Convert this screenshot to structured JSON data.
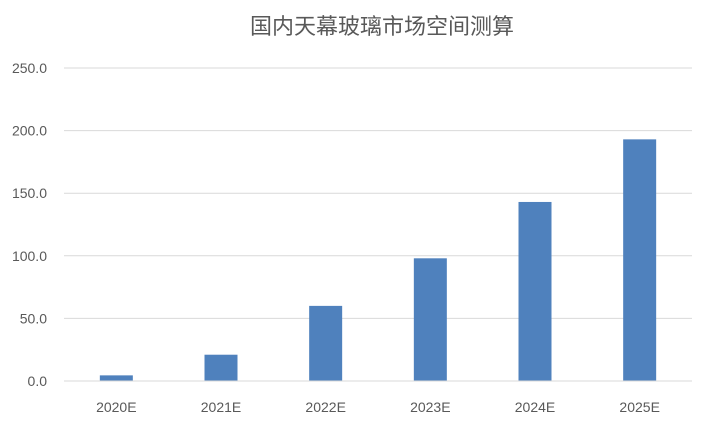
{
  "chart_data": {
    "type": "bar",
    "title": "国内天幕玻璃市场空间测算",
    "xlabel": "",
    "ylabel": "",
    "categories": [
      "2020E",
      "2021E",
      "2022E",
      "2023E",
      "2024E",
      "2025E"
    ],
    "values": [
      4.5,
      21.0,
      60.0,
      98.0,
      143.0,
      193.0
    ],
    "ylim": [
      0,
      250
    ],
    "yticks": [
      "0.0",
      "50.0",
      "100.0",
      "150.0",
      "200.0",
      "250.0"
    ],
    "ytick_values": [
      0,
      50,
      100,
      150,
      200,
      250
    ],
    "bar_color": "#4f81bd",
    "grid": true,
    "legend": "none"
  }
}
